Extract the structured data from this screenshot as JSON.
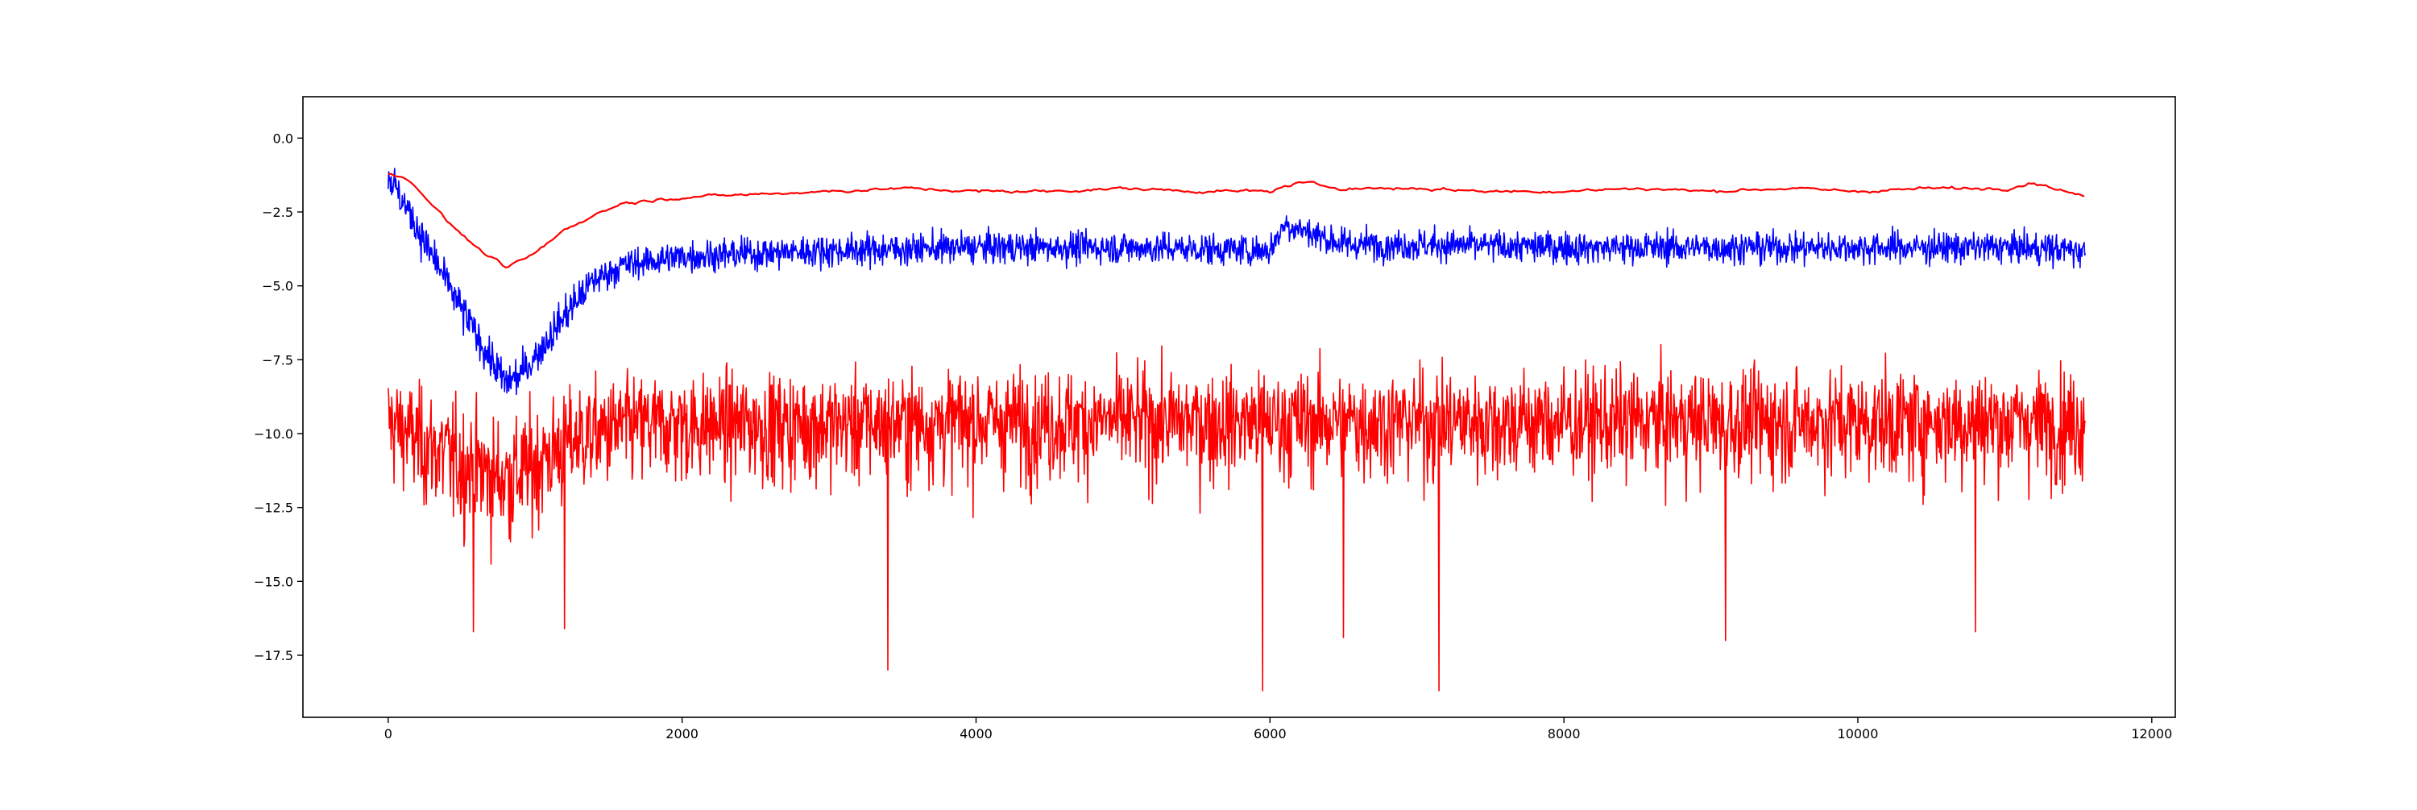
{
  "chart_data": {
    "type": "line",
    "title": "",
    "xlabel": "",
    "ylabel": "",
    "xlim": [
      -580,
      12160
    ],
    "ylim": [
      -19.6,
      1.4
    ],
    "x_ticks": [
      0,
      2000,
      4000,
      6000,
      8000,
      10000,
      12000
    ],
    "x_tick_labels": [
      "0",
      "2000",
      "4000",
      "6000",
      "8000",
      "10000",
      "12000"
    ],
    "y_ticks": [
      0.0,
      -2.5,
      -5.0,
      -7.5,
      -10.0,
      -12.5,
      -15.0,
      -17.5
    ],
    "y_tick_labels": [
      "0.0",
      "−2.5",
      "−5.0",
      "−7.5",
      "−10.0",
      "−12.5",
      "−15.0",
      "−17.5"
    ],
    "grid": false,
    "legend": "none",
    "series": [
      {
        "color": "#ff0000",
        "style": "noisy-wide",
        "x": [
          0,
          100,
          300,
          500,
          700,
          800,
          900,
          1100,
          1300,
          1600,
          2000,
          2500,
          3000,
          4000,
          5000,
          6000,
          7000,
          8000,
          9000,
          10000,
          11000,
          11550
        ],
        "y": [
          -9.5,
          -9.8,
          -10.4,
          -10.9,
          -11.3,
          -11.4,
          -11.2,
          -10.6,
          -10.0,
          -9.7,
          -9.6,
          -9.6,
          -9.6,
          -9.5,
          -9.5,
          -9.5,
          -9.5,
          -9.5,
          -9.5,
          -9.5,
          -9.5,
          -9.5
        ],
        "noise": [
          1.3,
          1.3,
          1.4,
          1.5,
          1.5,
          1.5,
          1.5,
          1.4,
          1.3,
          1.3,
          1.3,
          1.3,
          1.3,
          1.3,
          1.3,
          1.3,
          1.3,
          1.3,
          1.3,
          1.3,
          1.3,
          1.3
        ],
        "spikes": [
          {
            "x": 3400,
            "y": -18.0
          },
          {
            "x": 5950,
            "y": -18.7
          },
          {
            "x": 7150,
            "y": -18.7
          },
          {
            "x": 6500,
            "y": -16.9
          },
          {
            "x": 9100,
            "y": -17.0
          },
          {
            "x": 580,
            "y": -16.7
          },
          {
            "x": 1200,
            "y": -16.6
          },
          {
            "x": 10800,
            "y": -16.7
          }
        ]
      },
      {
        "color": "#0000ff",
        "style": "noisy",
        "x": [
          0,
          50,
          150,
          300,
          500,
          700,
          800,
          900,
          1000,
          1200,
          1400,
          1600,
          2000,
          3000,
          4000,
          5000,
          6000,
          6100,
          6500,
          7000,
          8000,
          9000,
          10000,
          11000,
          11550
        ],
        "y": [
          -1.2,
          -1.7,
          -2.6,
          -4.0,
          -5.8,
          -7.5,
          -8.3,
          -8.0,
          -7.4,
          -6.0,
          -4.8,
          -4.3,
          -4.0,
          -3.8,
          -3.7,
          -3.7,
          -3.8,
          -2.9,
          -3.6,
          -3.6,
          -3.7,
          -3.7,
          -3.7,
          -3.7,
          -3.8
        ],
        "noise": [
          0.6,
          0.6,
          0.6,
          0.6,
          0.6,
          0.6,
          0.6,
          0.6,
          0.6,
          0.6,
          0.5,
          0.5,
          0.5,
          0.5,
          0.5,
          0.5,
          0.5,
          0.5,
          0.5,
          0.5,
          0.5,
          0.5,
          0.5,
          0.5,
          0.5
        ]
      },
      {
        "color": "#ff0000",
        "style": "smooth",
        "x": [
          0,
          100,
          200,
          400,
          600,
          800,
          1000,
          1200,
          1400,
          1600,
          2000,
          2500,
          3000,
          3500,
          4000,
          4500,
          5000,
          5500,
          6000,
          6200,
          6500,
          7000,
          7500,
          8000,
          8500,
          9000,
          9500,
          10000,
          10500,
          11000,
          11200,
          11550
        ],
        "y": [
          -1.2,
          -1.3,
          -1.7,
          -2.8,
          -3.7,
          -4.4,
          -3.9,
          -3.1,
          -2.6,
          -2.2,
          -2.0,
          -1.9,
          -1.8,
          -1.7,
          -1.8,
          -1.8,
          -1.7,
          -1.8,
          -1.8,
          -1.5,
          -1.7,
          -1.7,
          -1.8,
          -1.8,
          -1.7,
          -1.8,
          -1.7,
          -1.8,
          -1.7,
          -1.7,
          -1.5,
          -2.0
        ],
        "noise": [
          0.05,
          0.05,
          0.05,
          0.08,
          0.08,
          0.08,
          0.08,
          0.08,
          0.08,
          0.08,
          0.08,
          0.08,
          0.08,
          0.08,
          0.08,
          0.08,
          0.08,
          0.08,
          0.08,
          0.08,
          0.08,
          0.08,
          0.08,
          0.08,
          0.08,
          0.08,
          0.08,
          0.08,
          0.08,
          0.08,
          0.08,
          0.08
        ]
      }
    ]
  }
}
